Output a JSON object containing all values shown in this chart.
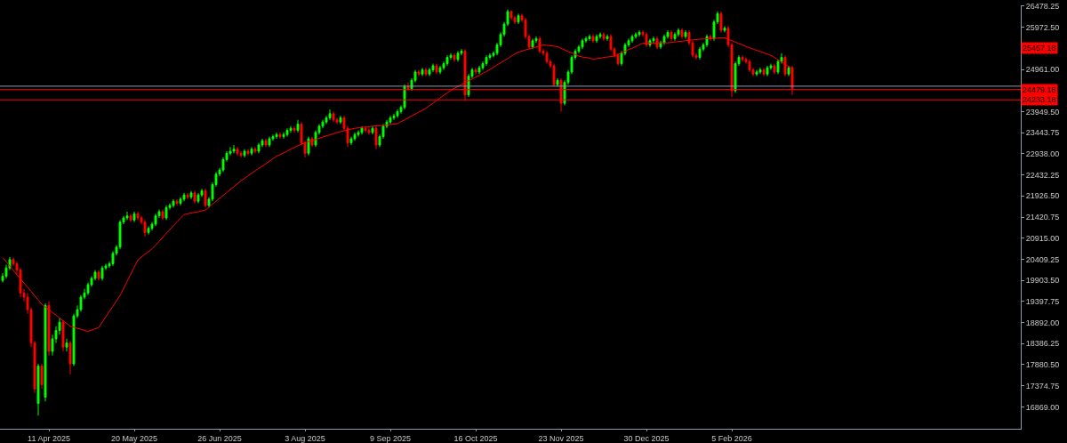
{
  "chart_data": {
    "type": "candlestick",
    "categories": [
      null,
      null,
      null,
      null,
      null,
      null,
      null,
      null,
      null,
      null,
      null,
      null,
      null,
      "11 Apr 2025",
      null,
      null,
      null,
      null,
      null,
      null,
      null,
      null,
      null,
      null,
      null,
      null,
      null,
      null,
      null,
      null,
      null,
      null,
      null,
      null,
      null,
      null,
      null,
      "20 May 2025",
      null,
      null,
      null,
      null,
      null,
      null,
      null,
      null,
      null,
      null,
      null,
      null,
      null,
      null,
      null,
      null,
      null,
      null,
      null,
      null,
      null,
      null,
      null,
      "26 Jun 2025",
      null,
      null,
      null,
      null,
      null,
      null,
      null,
      null,
      null,
      null,
      null,
      null,
      null,
      null,
      null,
      null,
      null,
      null,
      null,
      null,
      null,
      null,
      null,
      "3 Aug 2025",
      null,
      null,
      null,
      null,
      null,
      null,
      null,
      null,
      null,
      null,
      null,
      null,
      null,
      null,
      null,
      null,
      null,
      null,
      null,
      null,
      null,
      null,
      null,
      "9 Sep 2025",
      null,
      null,
      null,
      null,
      null,
      null,
      null,
      null,
      null,
      null,
      null,
      null,
      null,
      null,
      null,
      null,
      null,
      null,
      null,
      null,
      null,
      null,
      null,
      "16 Oct 2025",
      null,
      null,
      null,
      null,
      null,
      null,
      null,
      null,
      null,
      null,
      null,
      null,
      null,
      null,
      null,
      null,
      null,
      null,
      null,
      null,
      null,
      null,
      null,
      "23 Nov 2025",
      null,
      null,
      null,
      null,
      null,
      null,
      null,
      null,
      null,
      null,
      null,
      null,
      null,
      null,
      null,
      null,
      null,
      null,
      null,
      null,
      null,
      null,
      null,
      "30 Dec 2025",
      null,
      null,
      null,
      null,
      null,
      null,
      null,
      null,
      null,
      null,
      null,
      null,
      null,
      null,
      null,
      null,
      null,
      null,
      null,
      null,
      null,
      null,
      null,
      "5 Feb 2026",
      null,
      null,
      null,
      null,
      null,
      null,
      null,
      null,
      null,
      null,
      null,
      null,
      null,
      null,
      null,
      null,
      null
    ],
    "colors": [
      "#00ff00",
      "#00ff00",
      "#00ff00",
      "#ff0000",
      "#ff0000",
      "#ff0000",
      "#ff0000",
      "#ff0000",
      "#ff0000",
      "#ff0000",
      "#00ff00",
      "#ff0000",
      "#00ff00",
      "#ff0000",
      "#00ff00",
      "#00ff00",
      "#00ff00",
      "#ff0000",
      "#00ff00",
      "#ff0000",
      "#00ff00",
      "#00ff00",
      "#00ff00",
      "#00ff00",
      "#00ff00",
      "#00ff00",
      "#00ff00",
      "#ff0000",
      "#00ff00",
      "#00ff00",
      "#00ff00",
      "#00ff00",
      "#00ff00",
      "#00ff00",
      "#00ff00",
      "#00ff00",
      "#ff0000",
      "#00ff00",
      "#ff0000",
      "#ff0000",
      "#ff0000",
      "#00ff00",
      "#00ff00",
      "#00ff00",
      "#00ff00",
      "#ff0000",
      "#00ff00",
      "#00ff00",
      "#00ff00",
      "#ff0000",
      "#00ff00",
      "#00ff00",
      "#ff0000",
      "#00ff00",
      "#ff0000",
      "#00ff00",
      "#00ff00",
      "#ff0000",
      "#00ff00",
      "#00ff00",
      "#00ff00",
      "#00ff00",
      "#00ff00",
      "#00ff00",
      "#00ff00",
      "#00ff00",
      "#ff0000",
      "#ff0000",
      "#00ff00",
      "#ff0000",
      "#00ff00",
      "#ff0000",
      "#00ff00",
      "#00ff00",
      "#ff0000",
      "#00ff00",
      "#00ff00",
      "#00ff00",
      "#ff0000",
      "#00ff00",
      "#00ff00",
      "#00ff00",
      "#ff0000",
      "#00ff00",
      "#ff0000",
      "#ff0000",
      "#00ff00",
      "#ff0000",
      "#00ff00",
      "#00ff00",
      "#00ff00",
      "#00ff00",
      "#00ff00",
      "#ff0000",
      "#ff0000",
      "#00ff00",
      "#ff0000",
      "#ff0000",
      "#00ff00",
      "#00ff00",
      "#00ff00",
      "#00ff00",
      "#ff0000",
      "#ff0000",
      "#00ff00",
      "#ff0000",
      "#00ff00",
      "#00ff00",
      "#00ff00",
      "#00ff00",
      "#00ff00",
      "#00ff00",
      "#00ff00",
      "#00ff00",
      "#ff0000",
      "#00ff00",
      "#00ff00",
      "#ff0000",
      "#00ff00",
      "#ff0000",
      "#00ff00",
      "#00ff00",
      "#ff0000",
      "#00ff00",
      "#00ff00",
      "#00ff00",
      "#00ff00",
      "#ff0000",
      "#00ff00",
      "#00ff00",
      "#ff0000",
      "#00ff00",
      "#00ff00",
      "#ff0000",
      "#00ff00",
      "#00ff00",
      "#00ff00",
      "#00ff00",
      "#00ff00",
      "#00ff00",
      "#00ff00",
      "#00ff00",
      "#00ff00",
      "#ff0000",
      "#ff0000",
      "#00ff00",
      "#ff0000",
      "#ff0000",
      "#ff0000",
      "#00ff00",
      "#00ff00",
      "#ff0000",
      "#ff0000",
      "#ff0000",
      "#ff0000",
      "#ff0000",
      "#00ff00",
      "#ff0000",
      "#00ff00",
      "#00ff00",
      "#00ff00",
      "#00ff00",
      "#00ff00",
      "#00ff00",
      "#00ff00",
      "#00ff00",
      "#ff0000",
      "#00ff00",
      "#00ff00",
      "#ff0000",
      "#00ff00",
      "#ff0000",
      "#ff0000",
      "#ff0000",
      "#00ff00",
      "#00ff00",
      "#00ff00",
      "#00ff00",
      "#00ff00",
      "#00ff00",
      "#ff0000",
      "#ff0000",
      "#00ff00",
      "#00ff00",
      "#ff0000",
      "#00ff00",
      "#00ff00",
      "#00ff00",
      "#ff0000",
      "#00ff00",
      "#00ff00",
      "#ff0000",
      "#00ff00",
      "#ff0000",
      "#ff0000",
      "#ff0000",
      "#00ff00",
      "#00ff00",
      "#00ff00",
      "#ff0000",
      "#00ff00",
      "#00ff00",
      "#ff0000",
      "#00ff00",
      "#ff0000",
      "#ff0000",
      "#00ff00",
      "#00ff00",
      "#ff0000",
      "#ff0000",
      "#ff0000",
      "#ff0000",
      "#00ff00",
      "#00ff00",
      "#ff0000",
      "#00ff00",
      "#00ff00",
      "#ff0000",
      "#00ff00",
      "#00ff00",
      "#ff0000",
      "#00ff00",
      "#ff0000"
    ],
    "ohlc": [
      [
        19900,
        20080,
        19850,
        20000
      ],
      [
        20000,
        20280,
        19950,
        20200
      ],
      [
        20200,
        20460,
        20150,
        20400
      ],
      [
        20400,
        20450,
        20250,
        20300
      ],
      [
        20300,
        20350,
        20050,
        20150
      ],
      [
        20150,
        20200,
        19500,
        19600
      ],
      [
        19600,
        19700,
        19400,
        19500
      ],
      [
        19500,
        19600,
        19100,
        19200
      ],
      [
        19200,
        19250,
        18300,
        18400
      ],
      [
        18400,
        18450,
        17200,
        17300
      ],
      [
        16950,
        17900,
        16660,
        17850
      ],
      [
        17850,
        17900,
        17300,
        17400
      ],
      [
        17100,
        19350,
        17000,
        19300
      ],
      [
        19300,
        19400,
        18100,
        18200
      ],
      [
        18200,
        18600,
        18100,
        18500
      ],
      [
        18500,
        18800,
        18400,
        18700
      ],
      [
        18700,
        19000,
        18600,
        18900
      ],
      [
        18900,
        18950,
        18200,
        18300
      ],
      [
        18300,
        18500,
        18200,
        18400
      ],
      [
        18400,
        18450,
        17650,
        17900
      ],
      [
        17900,
        19100,
        17850,
        19050
      ],
      [
        19050,
        19300,
        19000,
        19200
      ],
      [
        19200,
        19550,
        19150,
        19500
      ],
      [
        19500,
        19700,
        19450,
        19600
      ],
      [
        19600,
        19850,
        19550,
        19800
      ],
      [
        19800,
        20000,
        19750,
        19950
      ],
      [
        19950,
        20150,
        19900,
        20100
      ],
      [
        20100,
        20150,
        19900,
        19950
      ],
      [
        19950,
        20250,
        19900,
        20200
      ],
      [
        20200,
        20300,
        20150,
        20250
      ],
      [
        20250,
        20350,
        20200,
        20300
      ],
      [
        20300,
        20600,
        20250,
        20550
      ],
      [
        20550,
        20750,
        20500,
        20700
      ],
      [
        20700,
        21350,
        20650,
        21300
      ],
      [
        21300,
        21450,
        21250,
        21400
      ],
      [
        21400,
        21550,
        21350,
        21450
      ],
      [
        21450,
        21500,
        21300,
        21350
      ],
      [
        21350,
        21550,
        21300,
        21500
      ],
      [
        21500,
        21550,
        21350,
        21400
      ],
      [
        21400,
        21450,
        21250,
        21300
      ],
      [
        21300,
        21350,
        20950,
        21050
      ],
      [
        21050,
        21200,
        21000,
        21150
      ],
      [
        21150,
        21300,
        21100,
        21250
      ],
      [
        21250,
        21500,
        21200,
        21450
      ],
      [
        21450,
        21600,
        21400,
        21550
      ],
      [
        21550,
        21600,
        21350,
        21400
      ],
      [
        21400,
        21700,
        21350,
        21650
      ],
      [
        21650,
        21750,
        21600,
        21700
      ],
      [
        21700,
        21850,
        21650,
        21800
      ],
      [
        21800,
        21850,
        21700,
        21750
      ],
      [
        21750,
        21900,
        21700,
        21850
      ],
      [
        21850,
        22000,
        21800,
        21950
      ],
      [
        21950,
        22000,
        21850,
        21900
      ],
      [
        21900,
        22050,
        21850,
        22000
      ],
      [
        22000,
        22050,
        21750,
        21800
      ],
      [
        21800,
        22000,
        21750,
        21950
      ],
      [
        21950,
        22100,
        21900,
        22050
      ],
      [
        22050,
        22100,
        21650,
        21700
      ],
      [
        21700,
        21900,
        21650,
        21850
      ],
      [
        21850,
        22250,
        21800,
        22200
      ],
      [
        22200,
        22500,
        22150,
        22450
      ],
      [
        22450,
        22600,
        22400,
        22550
      ],
      [
        22550,
        22850,
        22500,
        22800
      ],
      [
        22800,
        23000,
        22750,
        22950
      ],
      [
        22950,
        23100,
        22900,
        23000
      ],
      [
        23000,
        23150,
        22950,
        23050
      ],
      [
        23050,
        23100,
        22900,
        22950
      ],
      [
        22950,
        23000,
        22850,
        22900
      ],
      [
        22900,
        23050,
        22850,
        23000
      ],
      [
        23000,
        23050,
        22900,
        22950
      ],
      [
        22950,
        23100,
        22900,
        23050
      ],
      [
        23050,
        23100,
        22950,
        23000
      ],
      [
        23000,
        23200,
        22950,
        23150
      ],
      [
        23150,
        23300,
        23100,
        23250
      ],
      [
        23250,
        23300,
        23100,
        23150
      ],
      [
        23150,
        23350,
        23100,
        23300
      ],
      [
        23300,
        23400,
        23250,
        23350
      ],
      [
        23350,
        23450,
        23300,
        23400
      ],
      [
        23400,
        23450,
        23300,
        23350
      ],
      [
        23350,
        23450,
        23300,
        23400
      ],
      [
        23400,
        23550,
        23350,
        23500
      ],
      [
        23500,
        23600,
        23450,
        23550
      ],
      [
        23550,
        23600,
        23450,
        23500
      ],
      [
        23500,
        23750,
        23450,
        23650
      ],
      [
        23650,
        23700,
        23150,
        23200
      ],
      [
        23200,
        23250,
        22850,
        22950
      ],
      [
        22950,
        23350,
        22900,
        23300
      ],
      [
        23300,
        23350,
        23100,
        23150
      ],
      [
        23150,
        23500,
        23100,
        23450
      ],
      [
        23450,
        23650,
        23400,
        23600
      ],
      [
        23600,
        23750,
        23550,
        23700
      ],
      [
        23700,
        23850,
        23650,
        23800
      ],
      [
        23800,
        24000,
        23750,
        23900
      ],
      [
        23900,
        23950,
        23700,
        23750
      ],
      [
        23750,
        23800,
        23650,
        23700
      ],
      [
        23700,
        23850,
        23650,
        23800
      ],
      [
        23800,
        23850,
        23500,
        23550
      ],
      [
        23550,
        23600,
        23100,
        23200
      ],
      [
        23200,
        23350,
        23150,
        23300
      ],
      [
        23300,
        23450,
        23250,
        23400
      ],
      [
        23400,
        23500,
        23350,
        23450
      ],
      [
        23450,
        23600,
        23400,
        23550
      ],
      [
        23550,
        23600,
        23450,
        23500
      ],
      [
        23500,
        23550,
        23400,
        23450
      ],
      [
        23450,
        23600,
        23400,
        23550
      ],
      [
        23550,
        23600,
        23050,
        23150
      ],
      [
        23150,
        23400,
        23100,
        23350
      ],
      [
        23350,
        23650,
        23300,
        23600
      ],
      [
        23600,
        23750,
        23550,
        23700
      ],
      [
        23700,
        23850,
        23650,
        23800
      ],
      [
        23800,
        23900,
        23750,
        23850
      ],
      [
        23850,
        24000,
        23800,
        23950
      ],
      [
        23950,
        24100,
        23900,
        24050
      ],
      [
        24050,
        24600,
        24000,
        24550
      ],
      [
        24550,
        24650,
        24450,
        24500
      ],
      [
        24500,
        24750,
        24450,
        24700
      ],
      [
        24700,
        24950,
        24650,
        24900
      ],
      [
        24900,
        24950,
        24800,
        24850
      ],
      [
        24850,
        25000,
        24800,
        24950
      ],
      [
        24950,
        25000,
        24800,
        24850
      ],
      [
        24850,
        25000,
        24800,
        24950
      ],
      [
        24950,
        25100,
        24900,
        25050
      ],
      [
        25050,
        25100,
        24850,
        24900
      ],
      [
        24900,
        25050,
        24850,
        25000
      ],
      [
        25000,
        25150,
        24950,
        25100
      ],
      [
        25100,
        25300,
        25050,
        25250
      ],
      [
        25250,
        25350,
        25200,
        25300
      ],
      [
        25300,
        25350,
        25150,
        25200
      ],
      [
        25200,
        25400,
        25150,
        25350
      ],
      [
        25350,
        25450,
        25300,
        25400
      ],
      [
        25400,
        25450,
        24200,
        24350
      ],
      [
        24350,
        24850,
        24300,
        24800
      ],
      [
        24800,
        25000,
        24750,
        24950
      ],
      [
        24950,
        25000,
        24850,
        24900
      ],
      [
        24900,
        25050,
        24850,
        25000
      ],
      [
        25000,
        25150,
        24950,
        25100
      ],
      [
        25100,
        25300,
        25050,
        25250
      ],
      [
        25250,
        25350,
        25200,
        25300
      ],
      [
        25300,
        25400,
        25250,
        25350
      ],
      [
        25350,
        25600,
        25300,
        25550
      ],
      [
        25550,
        25850,
        25500,
        25800
      ],
      [
        25800,
        26100,
        25750,
        26050
      ],
      [
        26050,
        26400,
        26000,
        26350
      ],
      [
        26350,
        26380,
        26150,
        26200
      ],
      [
        26200,
        26250,
        26050,
        26100
      ],
      [
        26100,
        26300,
        26050,
        26250
      ],
      [
        26250,
        26300,
        26100,
        26150
      ],
      [
        26150,
        26200,
        25700,
        25750
      ],
      [
        25750,
        25800,
        25450,
        25500
      ],
      [
        25500,
        25700,
        25450,
        25650
      ],
      [
        25650,
        25750,
        25600,
        25700
      ],
      [
        25700,
        25750,
        25350,
        25400
      ],
      [
        25400,
        25450,
        25300,
        25350
      ],
      [
        25350,
        25400,
        25100,
        25150
      ],
      [
        25150,
        25200,
        25000,
        25050
      ],
      [
        25050,
        25100,
        24550,
        24600
      ],
      [
        24600,
        24750,
        24550,
        24700
      ],
      [
        24700,
        24750,
        23950,
        24150
      ],
      [
        24150,
        24700,
        24100,
        24650
      ],
      [
        24650,
        24950,
        24600,
        24900
      ],
      [
        24900,
        25300,
        24850,
        25250
      ],
      [
        25250,
        25450,
        25200,
        25400
      ],
      [
        25400,
        25550,
        25350,
        25500
      ],
      [
        25500,
        25700,
        25450,
        25650
      ],
      [
        25650,
        25750,
        25600,
        25700
      ],
      [
        25700,
        25800,
        25650,
        25750
      ],
      [
        25750,
        25800,
        25600,
        25650
      ],
      [
        25650,
        25800,
        25600,
        25750
      ],
      [
        25750,
        25850,
        25700,
        25800
      ],
      [
        25800,
        25850,
        25650,
        25700
      ],
      [
        25700,
        25800,
        25650,
        25750
      ],
      [
        25750,
        25800,
        25400,
        25450
      ],
      [
        25450,
        25500,
        25250,
        25300
      ],
      [
        25300,
        25350,
        25050,
        25100
      ],
      [
        25100,
        25400,
        25050,
        25350
      ],
      [
        25350,
        25600,
        25300,
        25550
      ],
      [
        25550,
        25700,
        25500,
        25650
      ],
      [
        25650,
        25800,
        25600,
        25750
      ],
      [
        25750,
        25850,
        25700,
        25800
      ],
      [
        25800,
        25900,
        25750,
        25850
      ],
      [
        25850,
        25900,
        25750,
        25800
      ],
      [
        25800,
        25850,
        25500,
        25550
      ],
      [
        25550,
        25700,
        25500,
        25650
      ],
      [
        25650,
        25750,
        25600,
        25700
      ],
      [
        25700,
        25750,
        25450,
        25500
      ],
      [
        25500,
        25650,
        25450,
        25600
      ],
      [
        25600,
        25800,
        25550,
        25750
      ],
      [
        25750,
        25900,
        25700,
        25850
      ],
      [
        25850,
        25900,
        25650,
        25700
      ],
      [
        25700,
        25850,
        25650,
        25800
      ],
      [
        25800,
        25950,
        25750,
        25900
      ],
      [
        25900,
        25950,
        25700,
        25750
      ],
      [
        25750,
        25900,
        25700,
        25850
      ],
      [
        25850,
        25900,
        25550,
        25600
      ],
      [
        25600,
        25650,
        25250,
        25300
      ],
      [
        25300,
        25350,
        25200,
        25250
      ],
      [
        25250,
        25500,
        25200,
        25450
      ],
      [
        25450,
        25600,
        25400,
        25550
      ],
      [
        25550,
        25800,
        25500,
        25750
      ],
      [
        25750,
        25800,
        25650,
        25700
      ],
      [
        25700,
        26150,
        25650,
        26100
      ],
      [
        26100,
        26350,
        26050,
        26300
      ],
      [
        26300,
        26350,
        25850,
        25900
      ],
      [
        25900,
        26000,
        25850,
        25950
      ],
      [
        25950,
        26000,
        25500,
        25550
      ],
      [
        25550,
        25600,
        24300,
        24450
      ],
      [
        24450,
        25150,
        24400,
        25100
      ],
      [
        25100,
        25300,
        25050,
        25250
      ],
      [
        25250,
        25300,
        25150,
        25200
      ],
      [
        25200,
        25250,
        25100,
        25150
      ],
      [
        25150,
        25200,
        24900,
        24950
      ],
      [
        24950,
        25000,
        24800,
        24850
      ],
      [
        24850,
        24950,
        24800,
        24900
      ],
      [
        24900,
        25000,
        24850,
        24950
      ],
      [
        24950,
        25000,
        24800,
        24850
      ],
      [
        24850,
        25050,
        24800,
        25000
      ],
      [
        25000,
        25100,
        24950,
        25050
      ],
      [
        25050,
        25100,
        24850,
        24900
      ],
      [
        24900,
        25200,
        24850,
        25150
      ],
      [
        25150,
        25350,
        25100,
        25250
      ],
      [
        25250,
        25300,
        24800,
        24850
      ],
      [
        24850,
        25050,
        24800,
        25000
      ],
      [
        25000,
        25050,
        24350,
        24500
      ]
    ],
    "series": [
      {
        "type": "line",
        "color": "#ff0000",
        "values": [
          20450,
          20350,
          20250,
          20140,
          20040,
          19940,
          19840,
          19740,
          19640,
          19530,
          19430,
          19330,
          19260,
          19200,
          19130,
          19070,
          19000,
          18930,
          18870,
          18800,
          18780,
          18750,
          18730,
          18700,
          18680,
          18710,
          18740,
          18770,
          18900,
          19030,
          19160,
          19280,
          19410,
          19540,
          19710,
          19880,
          20050,
          20220,
          20390,
          20460,
          20530,
          20590,
          20660,
          20750,
          20840,
          20930,
          21030,
          21120,
          21210,
          21300,
          21390,
          21480,
          21500,
          21520,
          21530,
          21550,
          21570,
          21590,
          21660,
          21730,
          21800,
          21870,
          21940,
          22010,
          22080,
          22150,
          22220,
          22290,
          22350,
          22410,
          22470,
          22530,
          22590,
          22640,
          22700,
          22760,
          22820,
          22880,
          22920,
          22960,
          23000,
          23050,
          23090,
          23130,
          23170,
          23200,
          23230,
          23250,
          23280,
          23310,
          23340,
          23370,
          23390,
          23420,
          23450,
          23470,
          23490,
          23510,
          23530,
          23550,
          23560,
          23570,
          23580,
          23590,
          23600,
          23610,
          23610,
          23620,
          23630,
          23640,
          23650,
          23660,
          23710,
          23750,
          23800,
          23850,
          23890,
          23940,
          23980,
          24030,
          24090,
          24150,
          24210,
          24280,
          24340,
          24400,
          24460,
          24510,
          24550,
          24600,
          24640,
          24690,
          24730,
          24780,
          24820,
          24870,
          24910,
          24960,
          25010,
          25070,
          25120,
          25170,
          25220,
          25280,
          25330,
          25380,
          25400,
          25430,
          25450,
          25480,
          25500,
          25530,
          25550,
          25540,
          25530,
          25520,
          25510,
          25470,
          25430,
          25390,
          25360,
          25320,
          25280,
          25260,
          25250,
          25230,
          25210,
          25220,
          25230,
          25250,
          25260,
          25270,
          25280,
          25320,
          25360,
          25400,
          25440,
          25470,
          25510,
          25550,
          25590,
          25590,
          25590,
          25590,
          25600,
          25600,
          25600,
          25600,
          25610,
          25620,
          25630,
          25640,
          25650,
          25660,
          25670,
          25680,
          25690,
          25690,
          25700,
          25700,
          25710,
          25710,
          25720,
          25720,
          25690,
          25650,
          25620,
          25580,
          25550,
          25510,
          25480,
          25450,
          25420,
          25390,
          25360,
          25330,
          25300,
          25250,
          25190,
          25140,
          25090,
          25030,
          24980
        ]
      }
    ],
    "ylim": [
      16343,
      26499
    ],
    "yticks": [
      {
        "value": 16869,
        "label": "16869.00"
      },
      {
        "value": 17374.75,
        "label": "17374.75"
      },
      {
        "value": 17880.5,
        "label": "17880.50"
      },
      {
        "value": 18386.25,
        "label": "18386.25"
      },
      {
        "value": 18892,
        "label": "18892.00"
      },
      {
        "value": 19397.75,
        "label": "19397.75"
      },
      {
        "value": 19903.5,
        "label": "19903.50"
      },
      {
        "value": 20409.25,
        "label": "20409.25"
      },
      {
        "value": 20915,
        "label": "20915.00"
      },
      {
        "value": 21420.75,
        "label": "21420.75"
      },
      {
        "value": 21926.5,
        "label": "21926.50"
      },
      {
        "value": 22432.25,
        "label": "22432.25"
      },
      {
        "value": 22938,
        "label": "22938.00"
      },
      {
        "value": 23443.75,
        "label": "23443.75"
      },
      {
        "value": 23949.5,
        "label": "23949.50"
      },
      {
        "value": 24961,
        "label": "24961.00"
      },
      {
        "value": 25972.5,
        "label": "25972.50"
      },
      {
        "value": 26478.25,
        "label": "26478.25"
      }
    ],
    "ref_lines": [
      {
        "axis": "y",
        "value": 24560,
        "color": "#8c9aa8"
      },
      {
        "axis": "y",
        "value": 24479.18,
        "label": "24479.18",
        "color": "#ff0000"
      },
      {
        "axis": "y",
        "value": 24233.18,
        "label": "24233.18",
        "color": "#ff0000"
      }
    ],
    "annotations": [
      "25457.18"
    ],
    "grid": false
  }
}
